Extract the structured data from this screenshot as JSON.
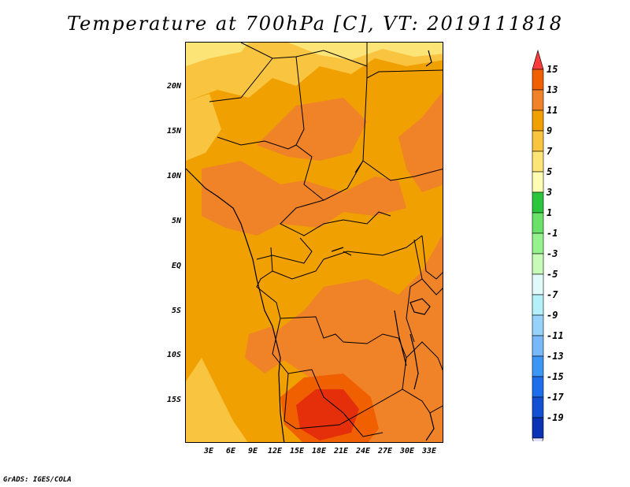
{
  "title": "Temperature at 700hPa [C], VT: 2019111818",
  "credit": "GrADS: IGES/COLA",
  "y_axis": [
    "20N",
    "15N",
    "10N",
    "5N",
    "EQ",
    "5S",
    "10S",
    "15S"
  ],
  "x_axis": [
    "3E",
    "6E",
    "9E",
    "12E",
    "15E",
    "18E",
    "21E",
    "24E",
    "27E",
    "30E",
    "33E"
  ],
  "colorbar": {
    "labels": [
      "15",
      "13",
      "11",
      "9",
      "7",
      "5",
      "3",
      "1",
      "-1",
      "-3",
      "-5",
      "-7",
      "-9",
      "-11",
      "-13",
      "-15",
      "-17",
      "-19"
    ],
    "colors": [
      "#fa3c3c",
      "#f06000",
      "#f08228",
      "#f0a000",
      "#f9c43f",
      "#fde477",
      "#fffdb3",
      "#2bc63d",
      "#6ae168",
      "#96f28c",
      "#c6fbb8",
      "#e0fafa",
      "#b4f0fa",
      "#96d2fa",
      "#78b9fa",
      "#3c96f5",
      "#1e6eeb",
      "#1450d2",
      "#0a32b4",
      "#00005a"
    ]
  }
}
